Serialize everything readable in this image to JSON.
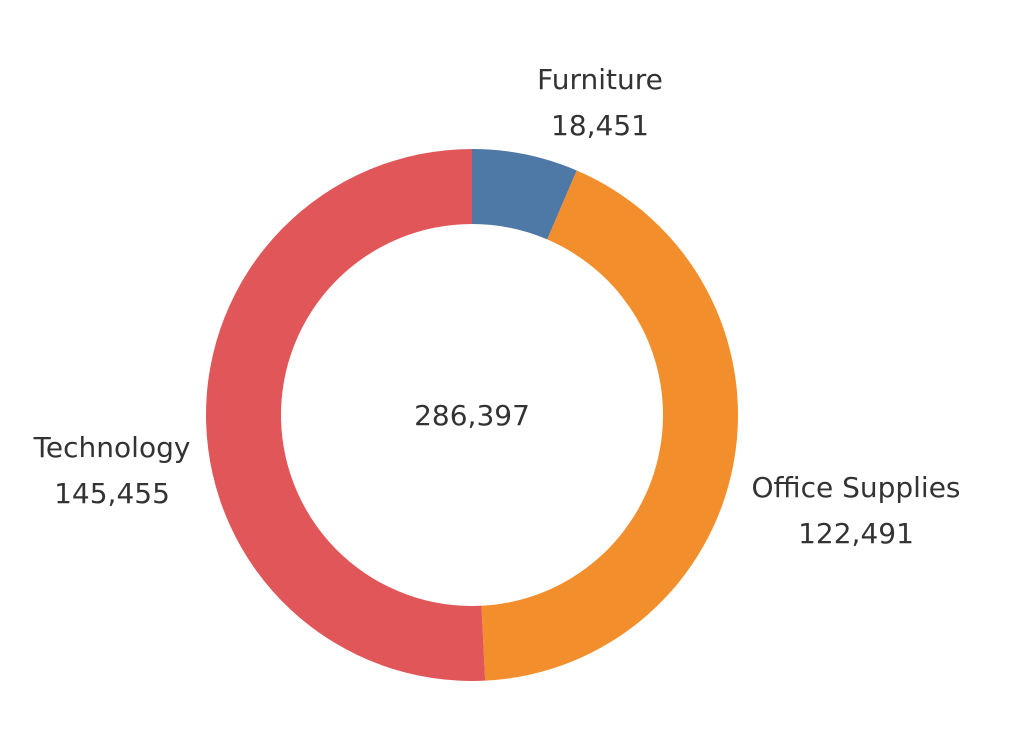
{
  "chart_data": {
    "type": "pie",
    "style": "donut",
    "title": "",
    "total_label": "286,397",
    "total": 286397,
    "categories": [
      "Furniture",
      "Office Supplies",
      "Technology"
    ],
    "values": [
      18451,
      122491,
      145455
    ],
    "value_labels": [
      "18,451",
      "122,491",
      "145,455"
    ],
    "colors": [
      "#4e79a7",
      "#f28e2b",
      "#e15759"
    ],
    "start_angle": "top",
    "direction": "clockwise",
    "legend": "none"
  }
}
